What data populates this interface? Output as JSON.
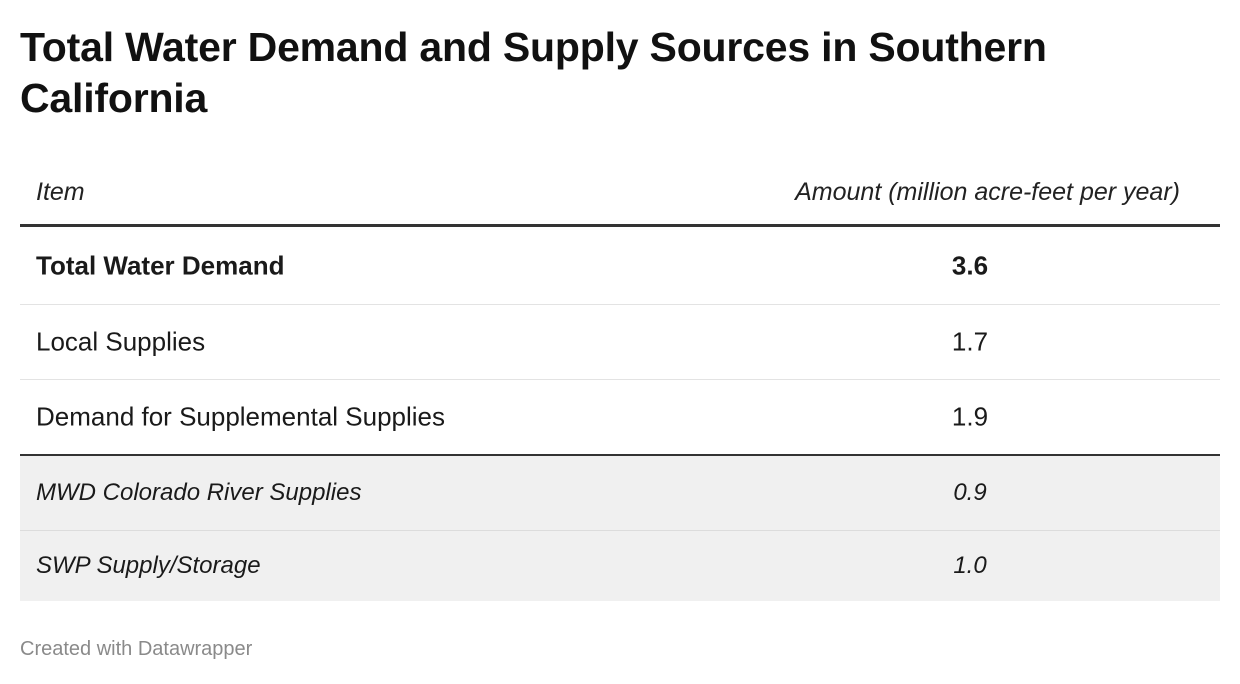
{
  "chart_data": {
    "type": "table",
    "title": "Total Water Demand and Supply Sources in Southern California",
    "columns": [
      "Item",
      "Amount (million acre-feet per year)"
    ],
    "rows": [
      {
        "item": "Total Water Demand",
        "value": "3.6"
      },
      {
        "item": "Local Supplies",
        "value": "1.7"
      },
      {
        "item": "Demand for Supplemental Supplies",
        "value": "1.9"
      },
      {
        "item": "MWD Colorado River Supplies",
        "value": "0.9"
      },
      {
        "item": "SWP Supply/Storage",
        "value": "1.0"
      }
    ],
    "footer": "Created with Datawrapper"
  }
}
